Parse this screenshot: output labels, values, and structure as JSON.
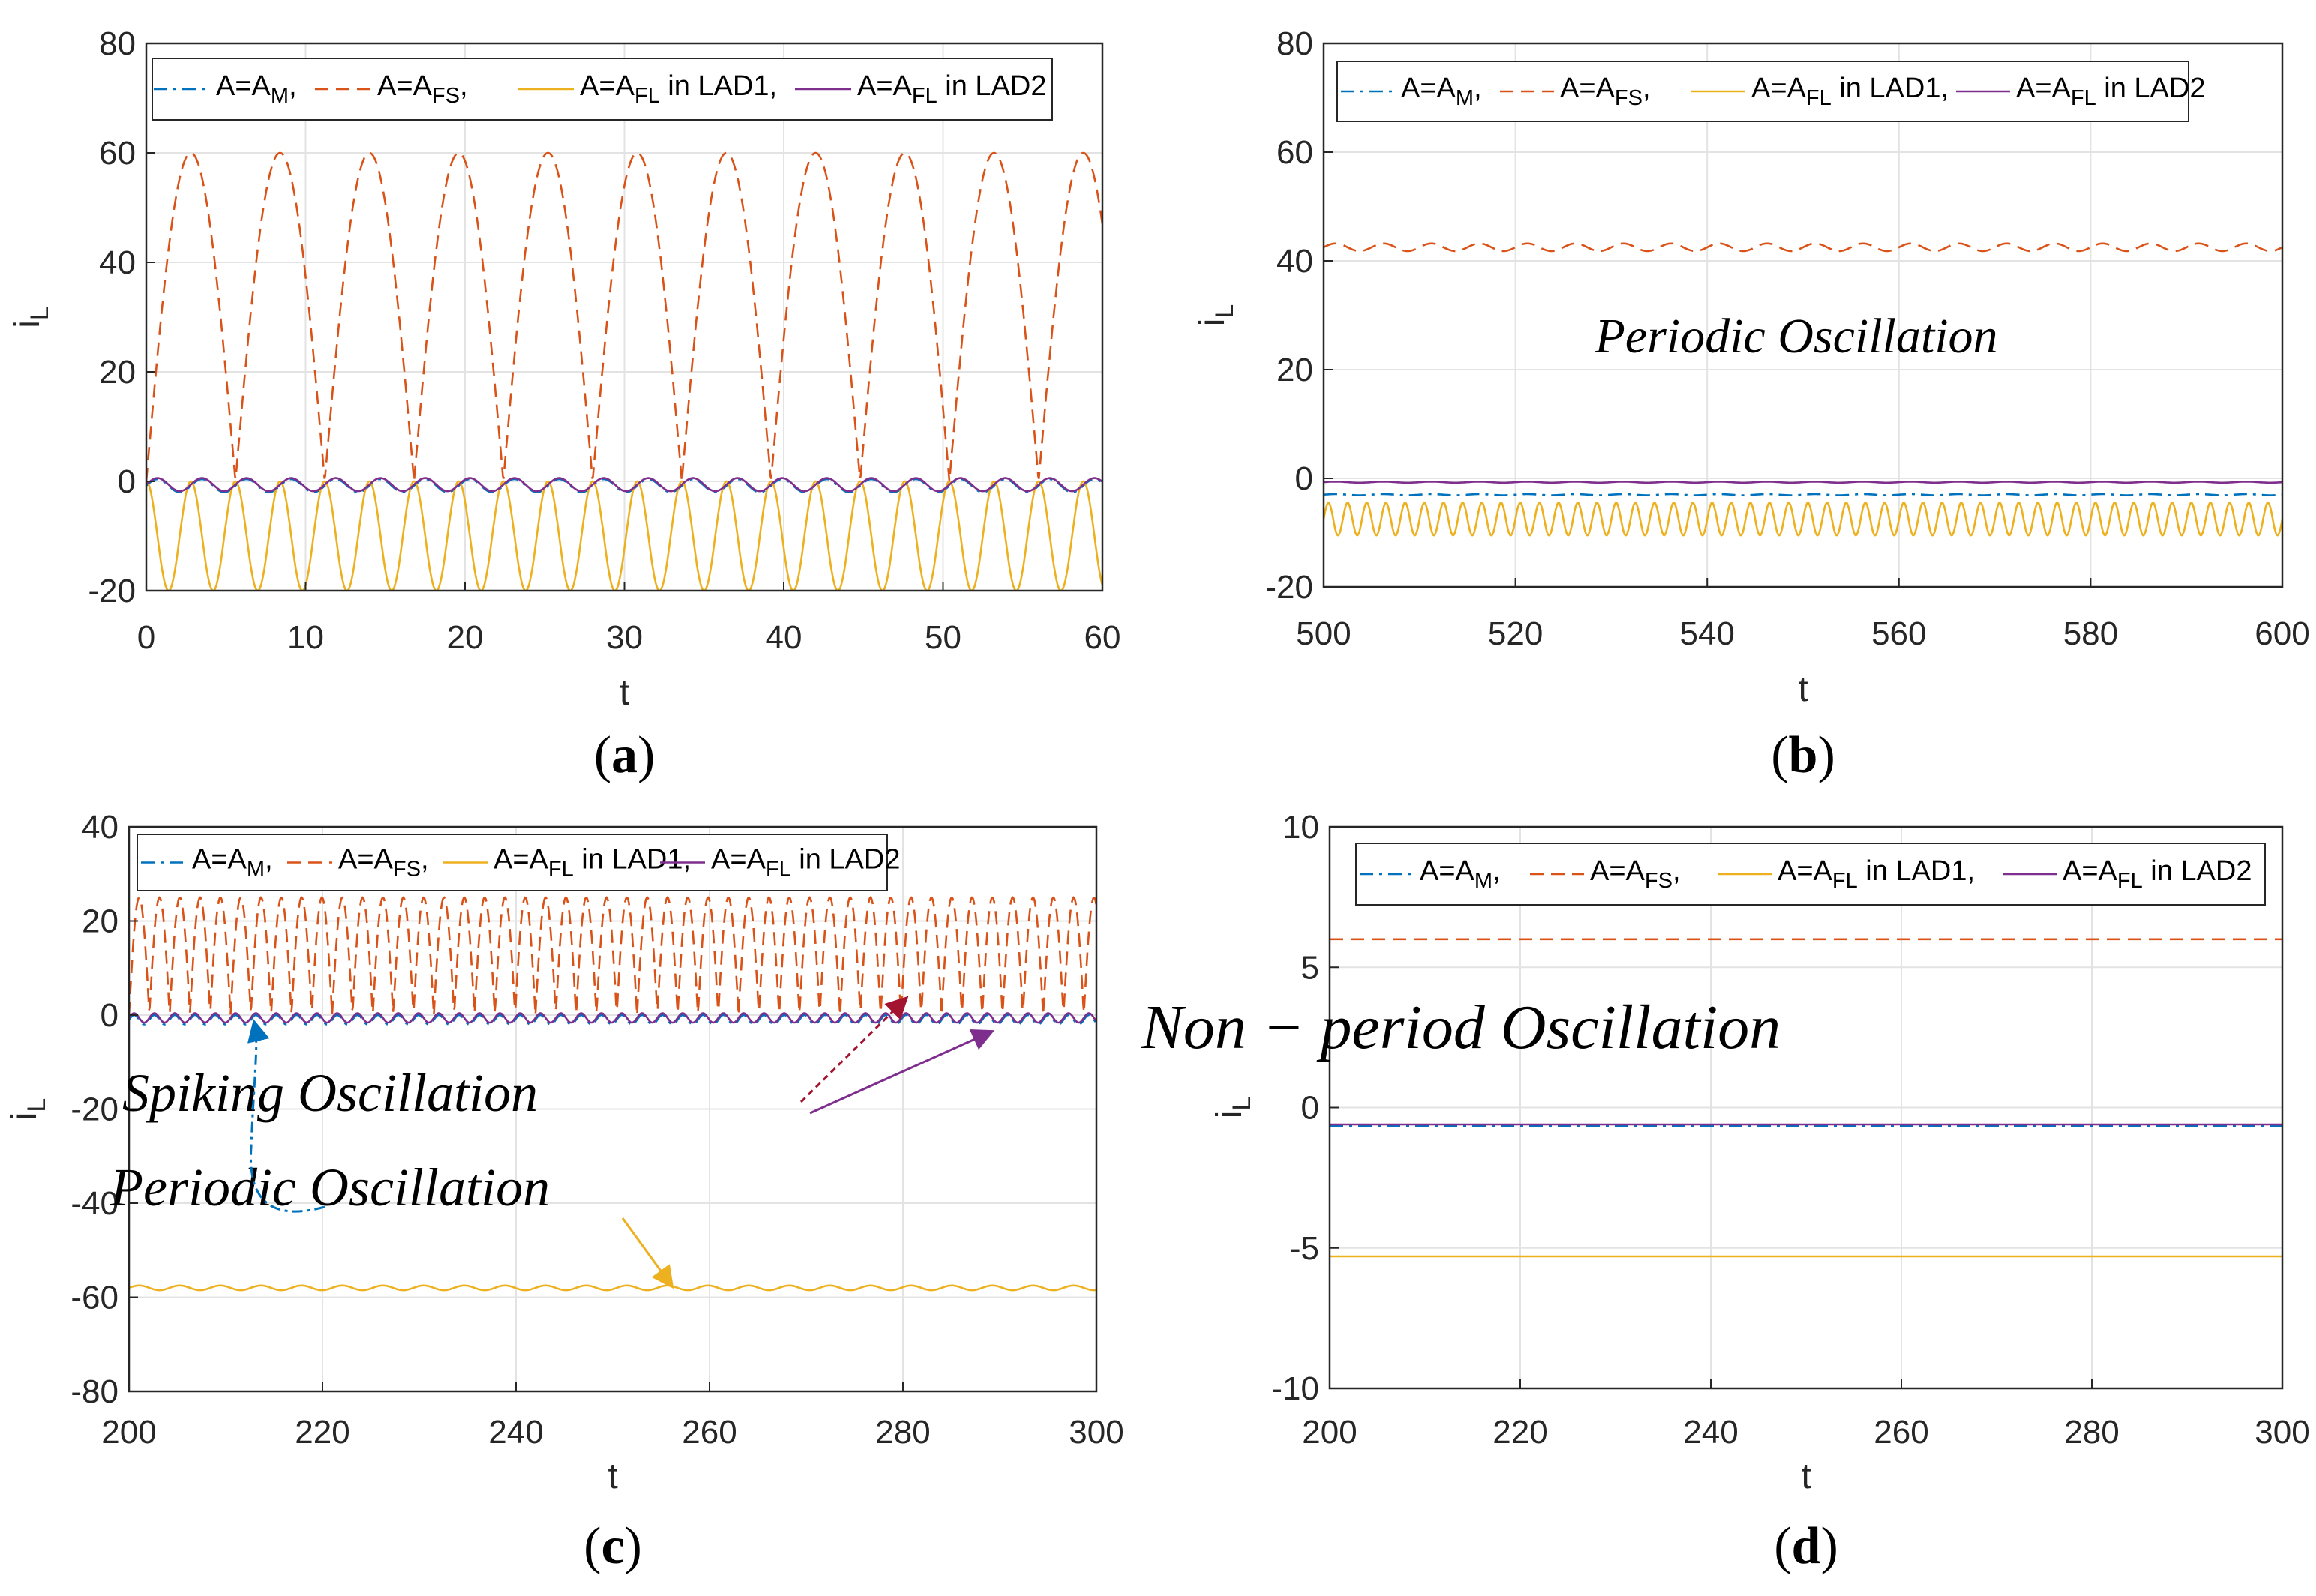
{
  "chart_data": [
    {
      "panel": "a",
      "type": "line",
      "caption": "(a)",
      "xlabel": "t",
      "ylabel": "i",
      "ylabel_sub": "L",
      "xlim": [
        0,
        60
      ],
      "ylim": [
        -20,
        80
      ],
      "xticks": [
        "0",
        "10",
        "20",
        "30",
        "40",
        "50",
        "60"
      ],
      "yticks": [
        "-20",
        "0",
        "20",
        "40",
        "60",
        "80"
      ],
      "grid": true,
      "legend": [
        "A=A_M,",
        "A=A_FS,",
        "A=A_FL in LAD1,",
        "A=A_FL in LAD2"
      ],
      "series": [
        {
          "name": "A=A_M",
          "color": "#0072BD",
          "dash": "dashdot",
          "baseline": -0.8,
          "amplitude": 1.2,
          "period": 2.8,
          "shape": "sine"
        },
        {
          "name": "A=A_FS",
          "color": "#D95319",
          "dash": "dashed",
          "baseline": 0,
          "amplitude": 60,
          "period": 5.6,
          "shape": "arch"
        },
        {
          "name": "A=A_FL in LAD1",
          "color": "#EDB120",
          "dash": "solid",
          "baseline": -10,
          "amplitude": 10,
          "period": 2.8,
          "shape": "dip"
        },
        {
          "name": "A=A_FL in LAD2",
          "color": "#7E2F8E",
          "dash": "solid",
          "baseline": -0.6,
          "amplitude": 1.2,
          "period": 2.8,
          "shape": "sine"
        }
      ]
    },
    {
      "panel": "b",
      "type": "line",
      "caption": "(b)",
      "xlabel": "t",
      "ylabel": "i",
      "ylabel_sub": "L",
      "xlim": [
        500,
        600
      ],
      "ylim": [
        -20,
        80
      ],
      "xticks": [
        "500",
        "520",
        "540",
        "560",
        "580",
        "600"
      ],
      "yticks": [
        "-20",
        "0",
        "20",
        "40",
        "60",
        "80"
      ],
      "grid": true,
      "legend": [
        "A=A_M,",
        "A=A_FS,",
        "A=A_FL in LAD1,",
        "A=A_FL in LAD2"
      ],
      "annotation": "Periodic    Oscillation",
      "series": [
        {
          "name": "A=A_M",
          "color": "#0072BD",
          "dash": "dashdot",
          "baseline": -3,
          "amplitude": 0.1,
          "period": 5,
          "shape": "sine"
        },
        {
          "name": "A=A_FS",
          "color": "#D95319",
          "dash": "dashed",
          "baseline": 42.5,
          "amplitude": 0.7,
          "period": 5,
          "shape": "sine"
        },
        {
          "name": "A=A_FL in LAD1",
          "color": "#EDB120",
          "dash": "solid",
          "baseline": -7.5,
          "amplitude": 3,
          "period": 2,
          "shape": "sine"
        },
        {
          "name": "A=A_FL in LAD2",
          "color": "#7E2F8E",
          "dash": "solid",
          "baseline": -0.7,
          "amplitude": 0.1,
          "period": 5,
          "shape": "sine"
        }
      ]
    },
    {
      "panel": "c",
      "type": "line",
      "caption": "(c)",
      "xlabel": "t",
      "ylabel": "i",
      "ylabel_sub": "L",
      "xlim": [
        200,
        300
      ],
      "ylim": [
        -80,
        40
      ],
      "xticks": [
        "200",
        "220",
        "240",
        "260",
        "280",
        "300"
      ],
      "yticks": [
        "-80",
        "-60",
        "-40",
        "-20",
        "0",
        "20",
        "40"
      ],
      "grid": true,
      "legend": [
        "A=A_M,",
        "A=A_FS,",
        "A=A_FL in LAD1,",
        "A=A_FL in LAD2"
      ],
      "annotations": [
        "Spiking    Oscillation",
        "Periodic    Oscillation"
      ],
      "series": [
        {
          "name": "A=A_M",
          "color": "#0072BD",
          "dash": "dashdot",
          "baseline": -1,
          "amplitude": 1,
          "period": 2.1,
          "shape": "sine"
        },
        {
          "name": "A=A_FS",
          "color": "#D95319",
          "dash": "dashed",
          "baseline": 0,
          "amplitude": 25,
          "period": 2.1,
          "shape": "arch"
        },
        {
          "name": "A=A_FL in LAD1",
          "color": "#EDB120",
          "dash": "solid",
          "baseline": -58,
          "amplitude": 0.5,
          "period": 4.2,
          "shape": "sine"
        },
        {
          "name": "A=A_FL in LAD2",
          "color": "#7E2F8E",
          "dash": "solid",
          "baseline": -0.6,
          "amplitude": 1,
          "period": 2.1,
          "shape": "sine"
        }
      ]
    },
    {
      "panel": "d",
      "type": "line",
      "caption": "(d)",
      "xlabel": "t",
      "ylabel": "i",
      "ylabel_sub": "L",
      "xlim": [
        200,
        300
      ],
      "ylim": [
        -10,
        10
      ],
      "xticks": [
        "200",
        "220",
        "240",
        "260",
        "280",
        "300"
      ],
      "yticks": [
        "-10",
        "-5",
        "0",
        "5",
        "10"
      ],
      "grid": true,
      "legend": [
        "A=A_M,",
        "A=A_FS,",
        "A=A_FL in LAD1,",
        "A=A_FL in LAD2"
      ],
      "annotation": "Non − period    Oscillation",
      "series": [
        {
          "name": "A=A_M",
          "color": "#0072BD",
          "dash": "dashdot",
          "baseline": -0.65,
          "amplitude": 0,
          "period": 5,
          "shape": "sine"
        },
        {
          "name": "A=A_FS",
          "color": "#D95319",
          "dash": "dashed",
          "baseline": 6,
          "amplitude": 0,
          "period": 5,
          "shape": "sine"
        },
        {
          "name": "A=A_FL in LAD1",
          "color": "#EDB120",
          "dash": "solid",
          "baseline": -5.3,
          "amplitude": 0,
          "period": 5,
          "shape": "sine"
        },
        {
          "name": "A=A_FL in LAD2",
          "color": "#7E2F8E",
          "dash": "solid",
          "baseline": -0.6,
          "amplitude": 0,
          "period": 5,
          "shape": "sine"
        }
      ]
    }
  ]
}
